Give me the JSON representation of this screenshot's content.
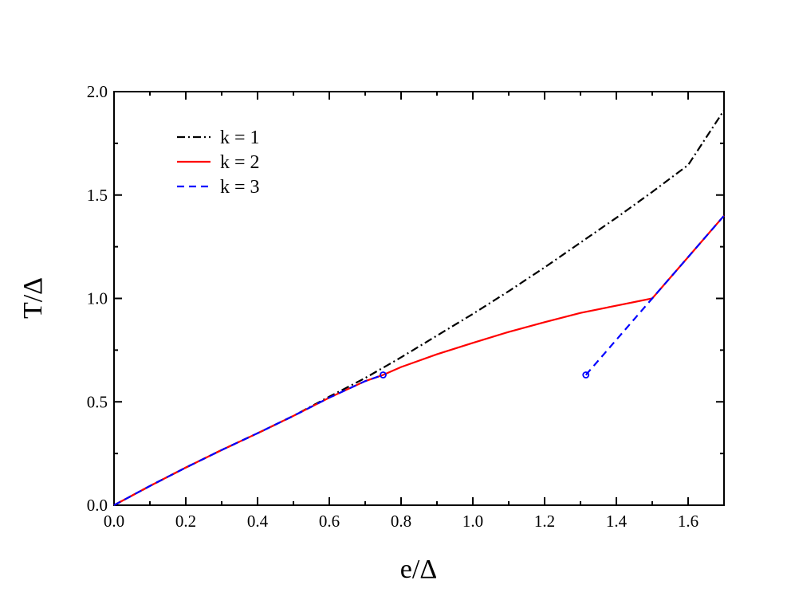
{
  "chart_data": {
    "type": "line",
    "title": "",
    "xlabel": "e/Δ",
    "ylabel": "T/Δ",
    "xlim": [
      0.0,
      1.7
    ],
    "ylim": [
      0.0,
      2.0
    ],
    "xticks": [
      0.0,
      0.2,
      0.4,
      0.6,
      0.8,
      1.0,
      1.2,
      1.4,
      1.6
    ],
    "xtick_labels": [
      "0.0",
      "0.2",
      "0.4",
      "0.6",
      "0.8",
      "1.0",
      "1.2",
      "1.4",
      "1.6"
    ],
    "yticks": [
      0.0,
      0.5,
      1.0,
      1.5,
      2.0
    ],
    "ytick_labels": [
      "0.0",
      "0.5",
      "1.0",
      "1.5",
      "2.0"
    ],
    "grid": false,
    "legend_position": "top-left",
    "series": [
      {
        "name": "k = 1",
        "color": "#000000",
        "style": "dashdot",
        "x": [
          0.0,
          0.1,
          0.2,
          0.3,
          0.4,
          0.5,
          0.6,
          0.7,
          0.8,
          0.9,
          1.0,
          1.1,
          1.2,
          1.3,
          1.4,
          1.5,
          1.6,
          1.7
        ],
        "y": [
          0.0,
          0.093,
          0.182,
          0.267,
          0.348,
          0.432,
          0.525,
          0.615,
          0.715,
          0.82,
          0.925,
          1.035,
          1.15,
          1.27,
          1.39,
          1.515,
          1.645,
          1.91
        ]
      },
      {
        "name": "k = 2",
        "color": "#ff0000",
        "style": "solid",
        "x": [
          0.0,
          0.1,
          0.2,
          0.3,
          0.4,
          0.5,
          0.6,
          0.7,
          0.75,
          0.8,
          0.9,
          1.0,
          1.1,
          1.2,
          1.3,
          1.4,
          1.5,
          1.6,
          1.7
        ],
        "y": [
          0.0,
          0.093,
          0.182,
          0.267,
          0.348,
          0.432,
          0.52,
          0.6,
          0.63,
          0.668,
          0.73,
          0.785,
          0.838,
          0.885,
          0.93,
          0.965,
          1.0,
          1.2,
          1.4
        ]
      },
      {
        "name": "k = 3",
        "color": "#0000ff",
        "style": "dashed",
        "segments": [
          {
            "x": [
              0.0,
              0.1,
              0.2,
              0.3,
              0.4,
              0.5,
              0.6,
              0.7,
              0.75
            ],
            "y": [
              0.0,
              0.093,
              0.182,
              0.267,
              0.348,
              0.432,
              0.52,
              0.6,
              0.63
            ]
          },
          {
            "x": [
              1.315,
              1.5,
              1.6,
              1.7
            ],
            "y": [
              0.63,
              1.0,
              1.2,
              1.4
            ]
          }
        ],
        "markers": [
          {
            "x": 0.75,
            "y": 0.63
          },
          {
            "x": 1.315,
            "y": 0.63
          }
        ]
      }
    ]
  }
}
